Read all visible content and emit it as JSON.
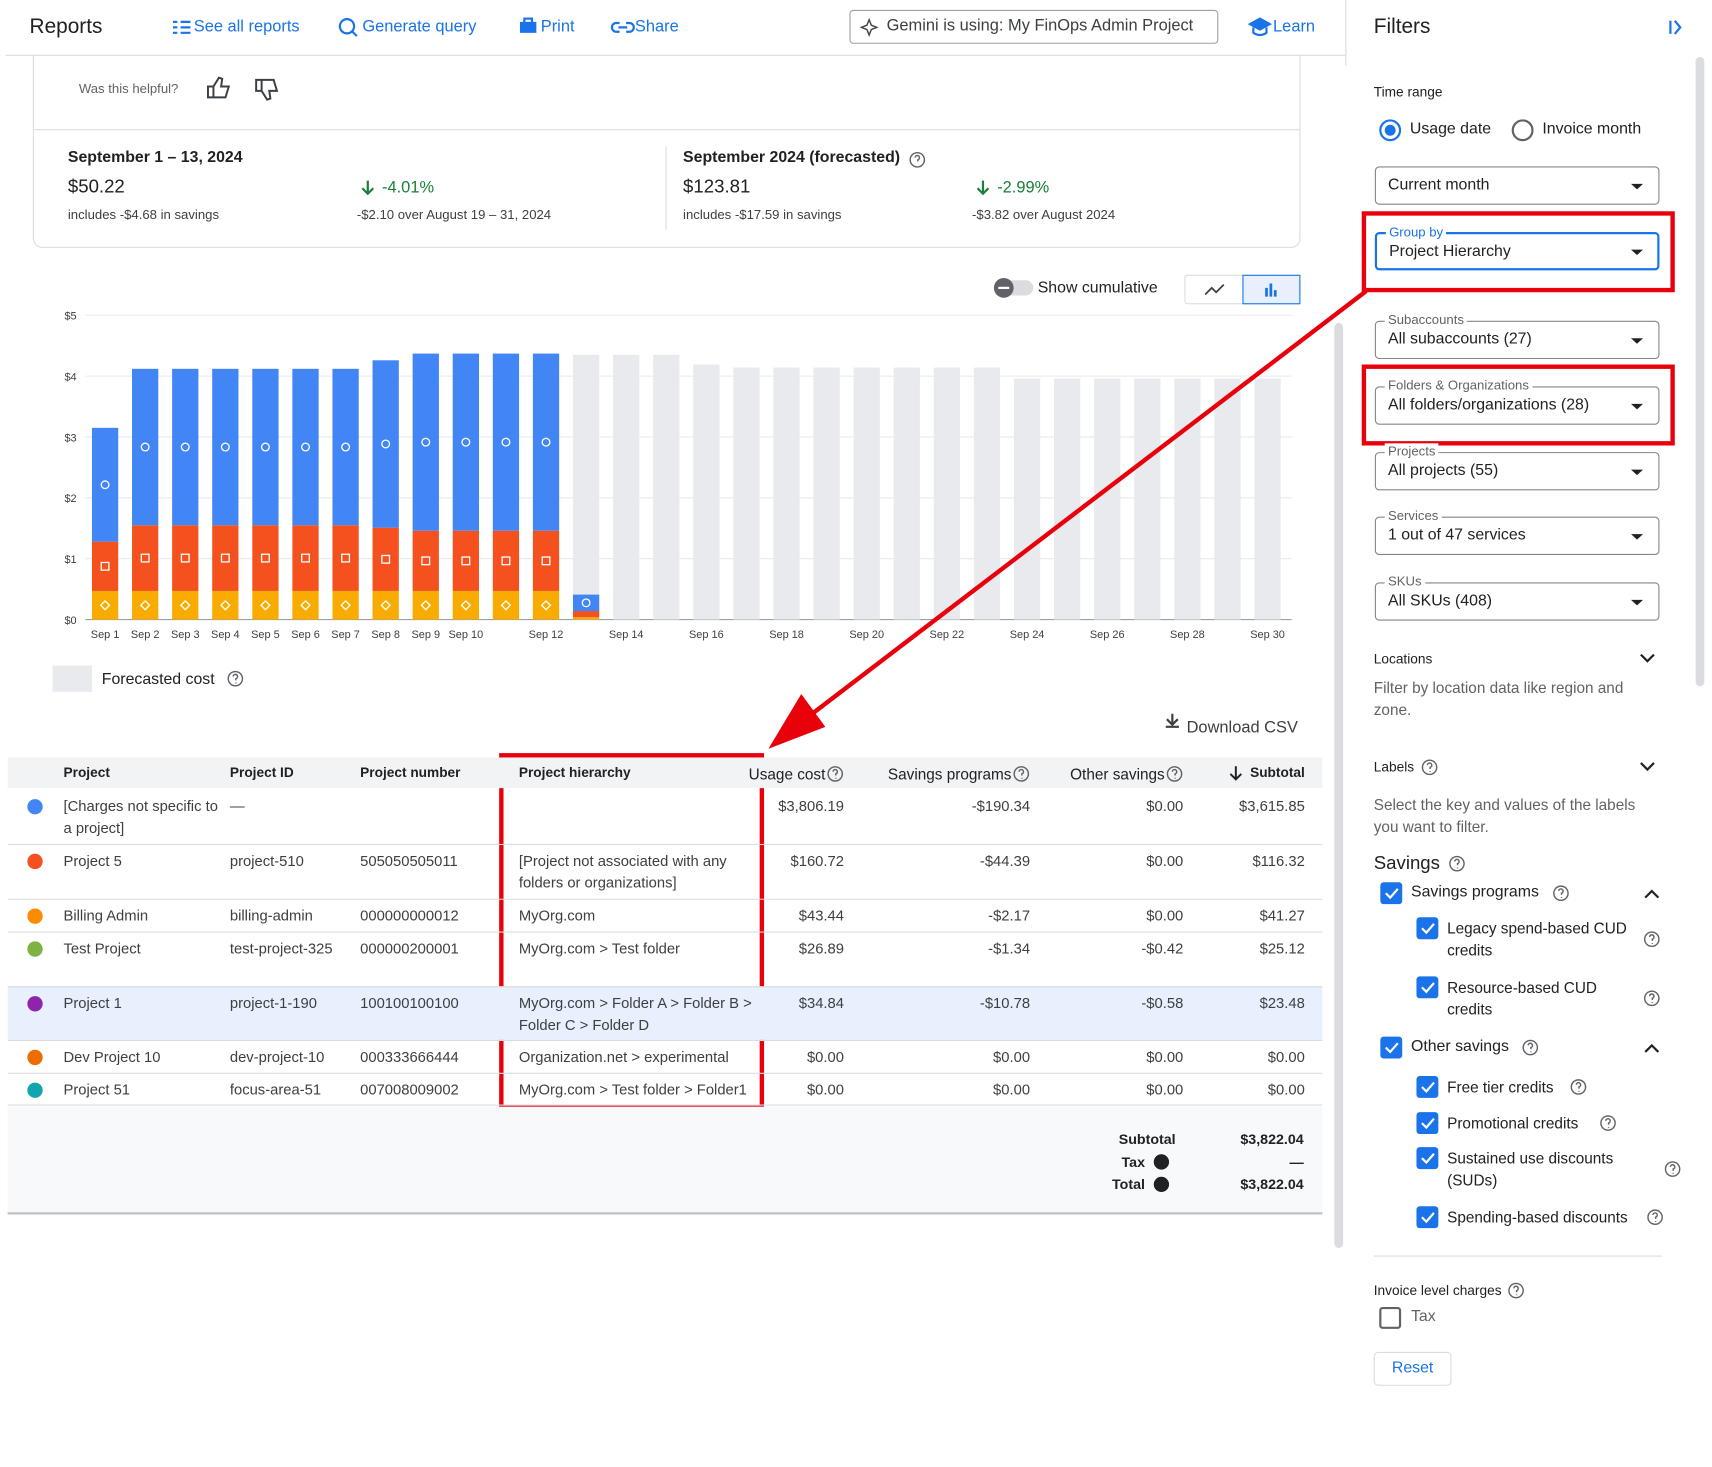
{
  "header": {
    "title": "Reports",
    "links": [
      "See all reports",
      "Generate query",
      "Print",
      "Share"
    ],
    "gemini": "Gemini is using: My FinOps Admin Project",
    "learn": "Learn"
  },
  "feedback": "Was this helpful?",
  "summary": [
    {
      "period": "September 1 – 13, 2024",
      "amount": "$50.22",
      "savings": "includes -$4.68 in savings",
      "change": "-4.01%",
      "comparison": "-$2.10 over August 19 – 31, 2024"
    },
    {
      "period": "September 2024 (forecasted)",
      "amount": "$123.81",
      "savings": "includes -$17.59 in savings",
      "change": "-2.99%",
      "comparison": "-$3.82 over August 2024"
    }
  ],
  "show_cumulative": "Show cumulative",
  "chart": {
    "type": "bar",
    "stacked": true,
    "categories": [
      "Sep 1",
      "Sep 2",
      "Sep 3",
      "Sep 4",
      "Sep 5",
      "Sep 6",
      "Sep 7",
      "Sep 8",
      "Sep 9",
      "Sep 10",
      null,
      "Sep 12",
      null,
      "Sep 14",
      null,
      "Sep 16",
      null,
      "Sep 18",
      null,
      "Sep 20",
      null,
      "Sep 22",
      null,
      "Sep 24",
      null,
      "Sep 26",
      null,
      "Sep 28",
      null,
      "Sep 30"
    ],
    "series": [
      {
        "color": "#f9ab00",
        "values": [
          0.47,
          0.47,
          0.47,
          0.47,
          0.47,
          0.47,
          0.47,
          0.47,
          0.47,
          0.47,
          0.47,
          0.47,
          0.04,
          null,
          null,
          null,
          null,
          null,
          null,
          null,
          null,
          null,
          null,
          null,
          null,
          null,
          null,
          null,
          null,
          null
        ]
      },
      {
        "color": "#f4511e",
        "values": [
          0.81,
          1.08,
          1.08,
          1.08,
          1.08,
          1.08,
          1.08,
          1.04,
          0.99,
          0.99,
          0.99,
          0.99,
          0.1,
          null,
          null,
          null,
          null,
          null,
          null,
          null,
          null,
          null,
          null,
          null,
          null,
          null,
          null,
          null,
          null,
          null
        ]
      },
      {
        "color": "#4285f4",
        "values": [
          1.87,
          2.57,
          2.57,
          2.57,
          2.57,
          2.57,
          2.57,
          2.75,
          2.91,
          2.91,
          2.91,
          2.91,
          0.27,
          null,
          null,
          null,
          null,
          null,
          null,
          null,
          null,
          null,
          null,
          null,
          null,
          null,
          null,
          null,
          null,
          null
        ]
      }
    ],
    "forecast": {
      "name": "Forecasted cost",
      "color": "#e8eaed",
      "values": [
        null,
        null,
        null,
        null,
        null,
        null,
        null,
        null,
        null,
        null,
        null,
        null,
        4.35,
        4.35,
        4.35,
        4.19,
        4.14,
        4.14,
        4.14,
        4.14,
        4.14,
        4.14,
        4.14,
        3.96,
        3.96,
        3.96,
        3.96,
        3.96,
        3.96,
        3.96
      ]
    },
    "ylim": [
      0,
      5
    ],
    "yticks": [
      {
        "value": 0,
        "label": "$0"
      },
      {
        "value": 1,
        "label": "$1"
      },
      {
        "value": 2,
        "label": "$2"
      },
      {
        "value": 3,
        "label": "$3"
      },
      {
        "value": 4,
        "label": "$4"
      },
      {
        "value": 5,
        "label": "$5"
      }
    ],
    "grid": true
  },
  "download": "Download CSV",
  "table": {
    "columns": [
      "Project",
      "Project ID",
      "Project number",
      "Project hierarchy",
      "Usage cost",
      "Savings programs",
      "Other savings",
      "Subtotal"
    ],
    "rows": [
      {
        "color": "#4285f4",
        "cells": [
          "[Charges not specific to a project]",
          "—",
          null,
          null,
          "$3,806.19",
          "-$190.34",
          "$0.00",
          "$3,615.85"
        ]
      },
      {
        "color": "#f4511e",
        "cells": [
          "Project 5",
          "project-510",
          "505050505011",
          "[Project not associated with any folders or organizations]",
          "$160.72",
          "-$44.39",
          "$0.00",
          "$116.32"
        ]
      },
      {
        "color": "#fb8c00",
        "cells": [
          "Billing Admin",
          "billing-admin",
          "000000000012",
          "MyOrg.com",
          "$43.44",
          "-$2.17",
          "$0.00",
          "$41.27"
        ]
      },
      {
        "color": "#7cb342",
        "cells": [
          "Test Project",
          "test-project-325",
          "000000200001",
          "MyOrg.com > Test folder",
          "$26.89",
          "-$1.34",
          "-$0.42",
          "$25.12"
        ]
      },
      {
        "color": "#8e24aa",
        "cells": [
          "Project 1",
          "project-1-190",
          "100100100100",
          "MyOrg.com > Folder A > Folder B > Folder C > Folder D",
          "$34.84",
          "-$10.78",
          "-$0.58",
          "$23.48"
        ]
      },
      {
        "color": "#ef6c00",
        "cells": [
          "Dev Project 10",
          "dev-project-10",
          "000333666444",
          "Organization.net > experimental",
          "$0.00",
          "$0.00",
          "$0.00",
          "$0.00"
        ]
      },
      {
        "color": "#12a4af",
        "cells": [
          "Project 51",
          "focus-area-51",
          "007008009002",
          "MyOrg.com > Test folder > Folder1",
          "$0.00",
          "$0.00",
          "$0.00",
          "$0.00"
        ]
      }
    ],
    "totals": [
      [
        "Subtotal",
        "$3,822.04"
      ],
      [
        "Tax",
        "—"
      ],
      [
        "Total",
        "$3,822.04"
      ]
    ]
  },
  "filters": {
    "title": "Filters",
    "time_range": {
      "label": "Time range",
      "options": [
        {
          "label": "Usage date",
          "selected": true
        },
        {
          "label": "Invoice month",
          "selected": false
        }
      ],
      "value": "Current month"
    },
    "selects": [
      {
        "label": "Group by",
        "value": "Project Hierarchy"
      },
      {
        "label": "Subaccounts",
        "value": "All subaccounts (27)"
      },
      {
        "label": "Folders & Organizations",
        "value": "All folders/organizations (28)"
      },
      {
        "label": "Projects",
        "value": "All projects (55)"
      },
      {
        "label": "Services",
        "value": "1 out of 47 services"
      },
      {
        "label": "SKUs",
        "value": "All SKUs (408)"
      }
    ],
    "locations": {
      "title": "Locations",
      "description": "Filter by location data like region and zone."
    },
    "labels": {
      "title": "Labels",
      "description": "Select the key and values of the labels you want to filter."
    },
    "savings": {
      "title": "Savings",
      "groups": [
        {
          "label": "Savings programs",
          "checked": true,
          "items": [
            {
              "label": "Legacy spend-based CUD credits",
              "checked": true
            },
            {
              "label": "Resource-based CUD credits",
              "checked": true
            }
          ]
        },
        {
          "label": "Other savings",
          "checked": true,
          "items": [
            {
              "label": "Free tier credits",
              "checked": true
            },
            {
              "label": "Promotional credits",
              "checked": true
            },
            {
              "label": "Sustained use discounts (SUDs)",
              "checked": true
            },
            {
              "label": "Spending-based discounts",
              "checked": true
            }
          ]
        }
      ]
    },
    "invoice": {
      "title": "Invoice level charges",
      "items": [
        {
          "label": "Tax",
          "checked": false
        }
      ]
    },
    "reset": "Reset"
  }
}
